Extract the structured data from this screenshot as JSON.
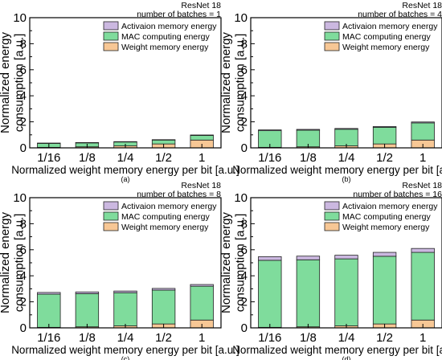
{
  "colors": {
    "activation": "#cbb8e0",
    "mac": "#7fdc9c",
    "weight": "#f7c795",
    "stroke": "#000000"
  },
  "ylabel": "Normalized energy consumption [a.u.]",
  "xlabel": "Normalized weight memory energy per bit [a.u.]",
  "chart_data": [
    {
      "type": "bar",
      "stacked": true,
      "panel_label": "(a)",
      "annotation_line1": "ResNet 18",
      "annotation_line2": "number of batches = 1",
      "categories": [
        "1/16",
        "1/8",
        "1/4",
        "1/2",
        "1"
      ],
      "ylim": [
        0,
        10
      ],
      "yticks": [
        "0",
        "2",
        "4",
        "6",
        "8",
        "10"
      ],
      "legend_position": "top-right",
      "series": [
        {
          "name": "Weight memory energy",
          "values": [
            0.04,
            0.08,
            0.15,
            0.3,
            0.6
          ]
        },
        {
          "name": "MAC computing energy",
          "values": [
            0.3,
            0.3,
            0.3,
            0.3,
            0.35
          ]
        },
        {
          "name": "Activaion memory energy",
          "values": [
            0.03,
            0.03,
            0.03,
            0.03,
            0.04
          ]
        }
      ]
    },
    {
      "type": "bar",
      "stacked": true,
      "panel_label": "(b)",
      "annotation_line1": "ResNet 18",
      "annotation_line2": "number of batches = 4",
      "categories": [
        "1/16",
        "1/8",
        "1/4",
        "1/2",
        "1"
      ],
      "ylim": [
        0,
        10
      ],
      "yticks": [
        "0",
        "2",
        "4",
        "6",
        "8",
        "10"
      ],
      "legend_position": "top-right",
      "series": [
        {
          "name": "Weight memory energy",
          "values": [
            0.04,
            0.08,
            0.15,
            0.3,
            0.6
          ]
        },
        {
          "name": "MAC computing energy",
          "values": [
            1.28,
            1.28,
            1.28,
            1.28,
            1.32
          ]
        },
        {
          "name": "Activaion memory energy",
          "values": [
            0.06,
            0.06,
            0.06,
            0.06,
            0.07
          ]
        }
      ]
    },
    {
      "type": "bar",
      "stacked": true,
      "panel_label": "(c)",
      "annotation_line1": "ResNet 18",
      "annotation_line2": "number of batches = 8",
      "categories": [
        "1/16",
        "1/8",
        "1/4",
        "1/2",
        "1"
      ],
      "ylim": [
        0,
        10
      ],
      "yticks": [
        "0",
        "2",
        "4",
        "6",
        "8",
        "10"
      ],
      "legend_position": "top-right",
      "series": [
        {
          "name": "Weight memory energy",
          "values": [
            0.04,
            0.08,
            0.15,
            0.3,
            0.6
          ]
        },
        {
          "name": "MAC computing energy",
          "values": [
            2.55,
            2.55,
            2.55,
            2.6,
            2.6
          ]
        },
        {
          "name": "Activaion memory energy",
          "values": [
            0.13,
            0.13,
            0.13,
            0.13,
            0.13
          ]
        }
      ]
    },
    {
      "type": "bar",
      "stacked": true,
      "panel_label": "(d)",
      "annotation_line1": "ResNet 18",
      "annotation_line2": "number of batches = 16",
      "categories": [
        "1/16",
        "1/8",
        "1/4",
        "1/2",
        "1"
      ],
      "ylim": [
        0,
        10
      ],
      "yticks": [
        "0",
        "2",
        "4",
        "6",
        "8",
        "10"
      ],
      "legend_position": "top-right",
      "series": [
        {
          "name": "Weight memory energy",
          "values": [
            0.04,
            0.08,
            0.15,
            0.3,
            0.6
          ]
        },
        {
          "name": "MAC computing energy",
          "values": [
            5.15,
            5.15,
            5.15,
            5.2,
            5.2
          ]
        },
        {
          "name": "Activaion memory energy",
          "values": [
            0.28,
            0.28,
            0.28,
            0.3,
            0.3
          ]
        }
      ]
    }
  ]
}
